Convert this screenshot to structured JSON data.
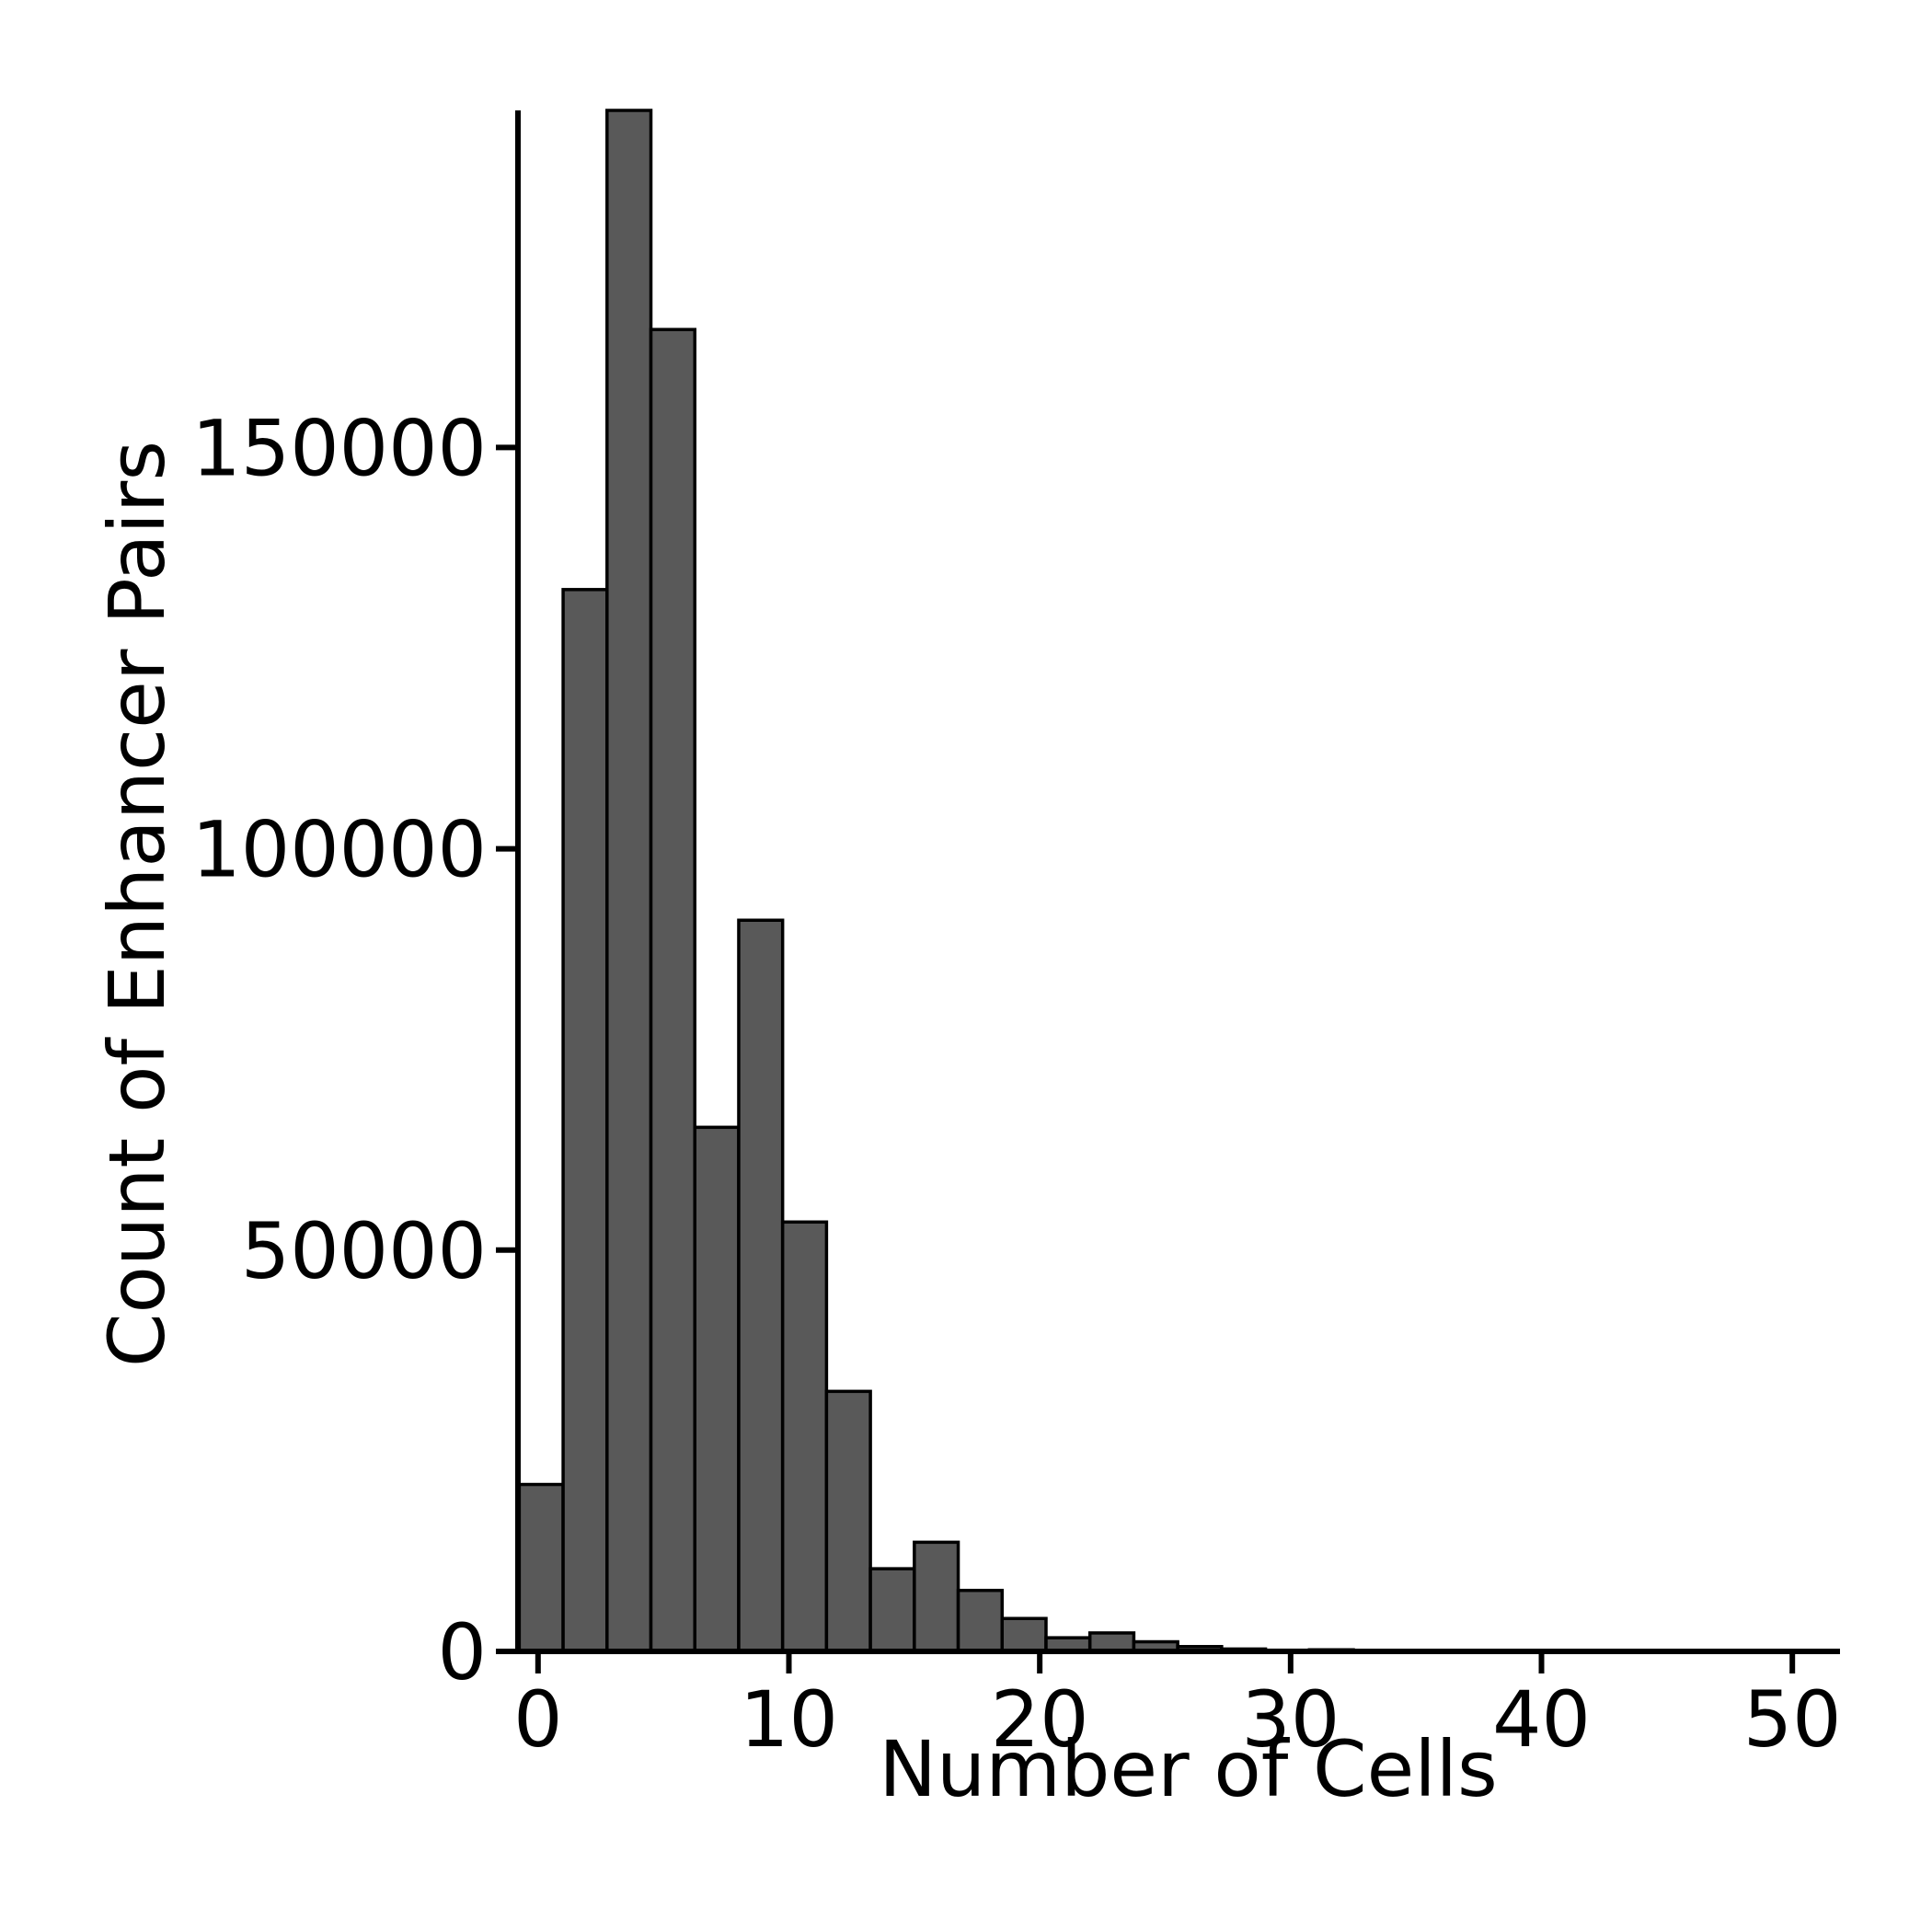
{
  "chart_data": {
    "type": "bar",
    "xlabel": "Number of Cells",
    "ylabel": "Count of Enhancer Pairs",
    "xlim": [
      -0.8,
      51.9
    ],
    "ylim": [
      0,
      192000
    ],
    "xticks": [
      0,
      10,
      20,
      30,
      40,
      50
    ],
    "yticks": [
      0,
      50000,
      100000,
      150000
    ],
    "bin_width": 1.75,
    "bins": [
      {
        "x0": -0.75,
        "x1": 1.0,
        "count": 20800
      },
      {
        "x0": 1.0,
        "x1": 2.75,
        "count": 132300
      },
      {
        "x0": 2.75,
        "x1": 4.5,
        "count": 192000
      },
      {
        "x0": 4.5,
        "x1": 6.25,
        "count": 164700
      },
      {
        "x0": 6.25,
        "x1": 8.0,
        "count": 65300
      },
      {
        "x0": 8.0,
        "x1": 9.75,
        "count": 91100
      },
      {
        "x0": 9.75,
        "x1": 11.5,
        "count": 53500
      },
      {
        "x0": 11.5,
        "x1": 13.25,
        "count": 32400
      },
      {
        "x0": 13.25,
        "x1": 15.0,
        "count": 10300
      },
      {
        "x0": 15.0,
        "x1": 16.75,
        "count": 13600
      },
      {
        "x0": 16.75,
        "x1": 18.5,
        "count": 7600
      },
      {
        "x0": 18.5,
        "x1": 20.25,
        "count": 4100
      },
      {
        "x0": 20.25,
        "x1": 22.0,
        "count": 1700
      },
      {
        "x0": 22.0,
        "x1": 23.75,
        "count": 2300
      },
      {
        "x0": 23.75,
        "x1": 25.5,
        "count": 1200
      },
      {
        "x0": 25.5,
        "x1": 27.25,
        "count": 600
      },
      {
        "x0": 27.25,
        "x1": 29.0,
        "count": 300
      },
      {
        "x0": 29.0,
        "x1": 30.75,
        "count": 150
      },
      {
        "x0": 30.75,
        "x1": 32.5,
        "count": 200
      },
      {
        "x0": 32.5,
        "x1": 34.25,
        "count": 80
      },
      {
        "x0": 34.25,
        "x1": 36.0,
        "count": 50
      },
      {
        "x0": 36.0,
        "x1": 37.75,
        "count": 30
      },
      {
        "x0": 37.75,
        "x1": 39.5,
        "count": 20
      },
      {
        "x0": 39.5,
        "x1": 41.25,
        "count": 10
      },
      {
        "x0": 41.25,
        "x1": 43.0,
        "count": 10
      },
      {
        "x0": 43.0,
        "x1": 44.75,
        "count": 5
      },
      {
        "x0": 44.75,
        "x1": 46.5,
        "count": 5
      },
      {
        "x0": 46.5,
        "x1": 48.25,
        "count": 5
      },
      {
        "x0": 48.25,
        "x1": 50.0,
        "count": 5
      }
    ],
    "colors": {
      "bar_fill": "#595959",
      "bar_edge": "#000000",
      "axis": "#000000"
    },
    "grid": false,
    "legend": false
  }
}
